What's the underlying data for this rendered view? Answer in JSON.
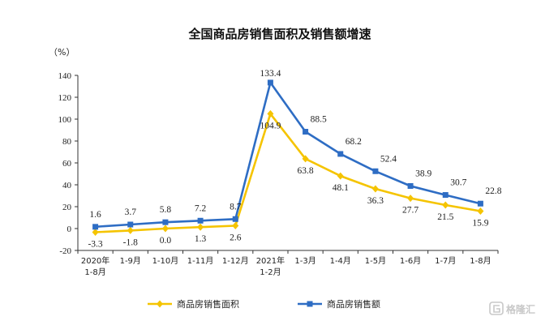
{
  "chart_data": {
    "type": "line",
    "title": "全国商品房销售面积及销售额增速",
    "ylabel": "（%）",
    "ylim": [
      -20,
      140
    ],
    "yticks": [
      -20,
      0,
      20,
      40,
      60,
      80,
      100,
      120,
      140
    ],
    "categories": [
      [
        "2020年",
        "1-8月"
      ],
      [
        "1-9月"
      ],
      [
        "1-10月"
      ],
      [
        "1-11月"
      ],
      [
        "1-12月"
      ],
      [
        "2021年",
        "1-2月"
      ],
      [
        "1-3月"
      ],
      [
        "1-4月"
      ],
      [
        "1-5月"
      ],
      [
        "1-6月"
      ],
      [
        "1-7月"
      ],
      [
        "1-8月"
      ]
    ],
    "series": [
      {
        "name": "商品房销售面积",
        "color": "#f5c400",
        "marker": "diamond",
        "values": [
          -3.3,
          -1.8,
          0.0,
          1.3,
          2.6,
          104.9,
          63.8,
          48.1,
          36.3,
          27.7,
          21.5,
          15.9
        ],
        "labels": [
          "-3.3",
          "-1.8",
          "0.0",
          "1.3",
          "2.6",
          "104.9",
          "63.8",
          "48.1",
          "36.3",
          "27.7",
          "21.5",
          "15.9"
        ]
      },
      {
        "name": "商品房销售额",
        "color": "#2e6dc4",
        "marker": "square",
        "values": [
          1.6,
          3.7,
          5.8,
          7.2,
          8.7,
          133.4,
          88.5,
          68.2,
          52.4,
          38.9,
          30.7,
          22.8
        ],
        "labels": [
          "1.6",
          "3.7",
          "5.8",
          "7.2",
          "8.7",
          "133.4",
          "88.5",
          "68.2",
          "52.4",
          "38.9",
          "30.7",
          "22.8"
        ]
      }
    ],
    "grid": false,
    "legend_position": "bottom"
  },
  "watermark": "格隆汇",
  "watermark_icon": "gelonghui-logo-icon"
}
